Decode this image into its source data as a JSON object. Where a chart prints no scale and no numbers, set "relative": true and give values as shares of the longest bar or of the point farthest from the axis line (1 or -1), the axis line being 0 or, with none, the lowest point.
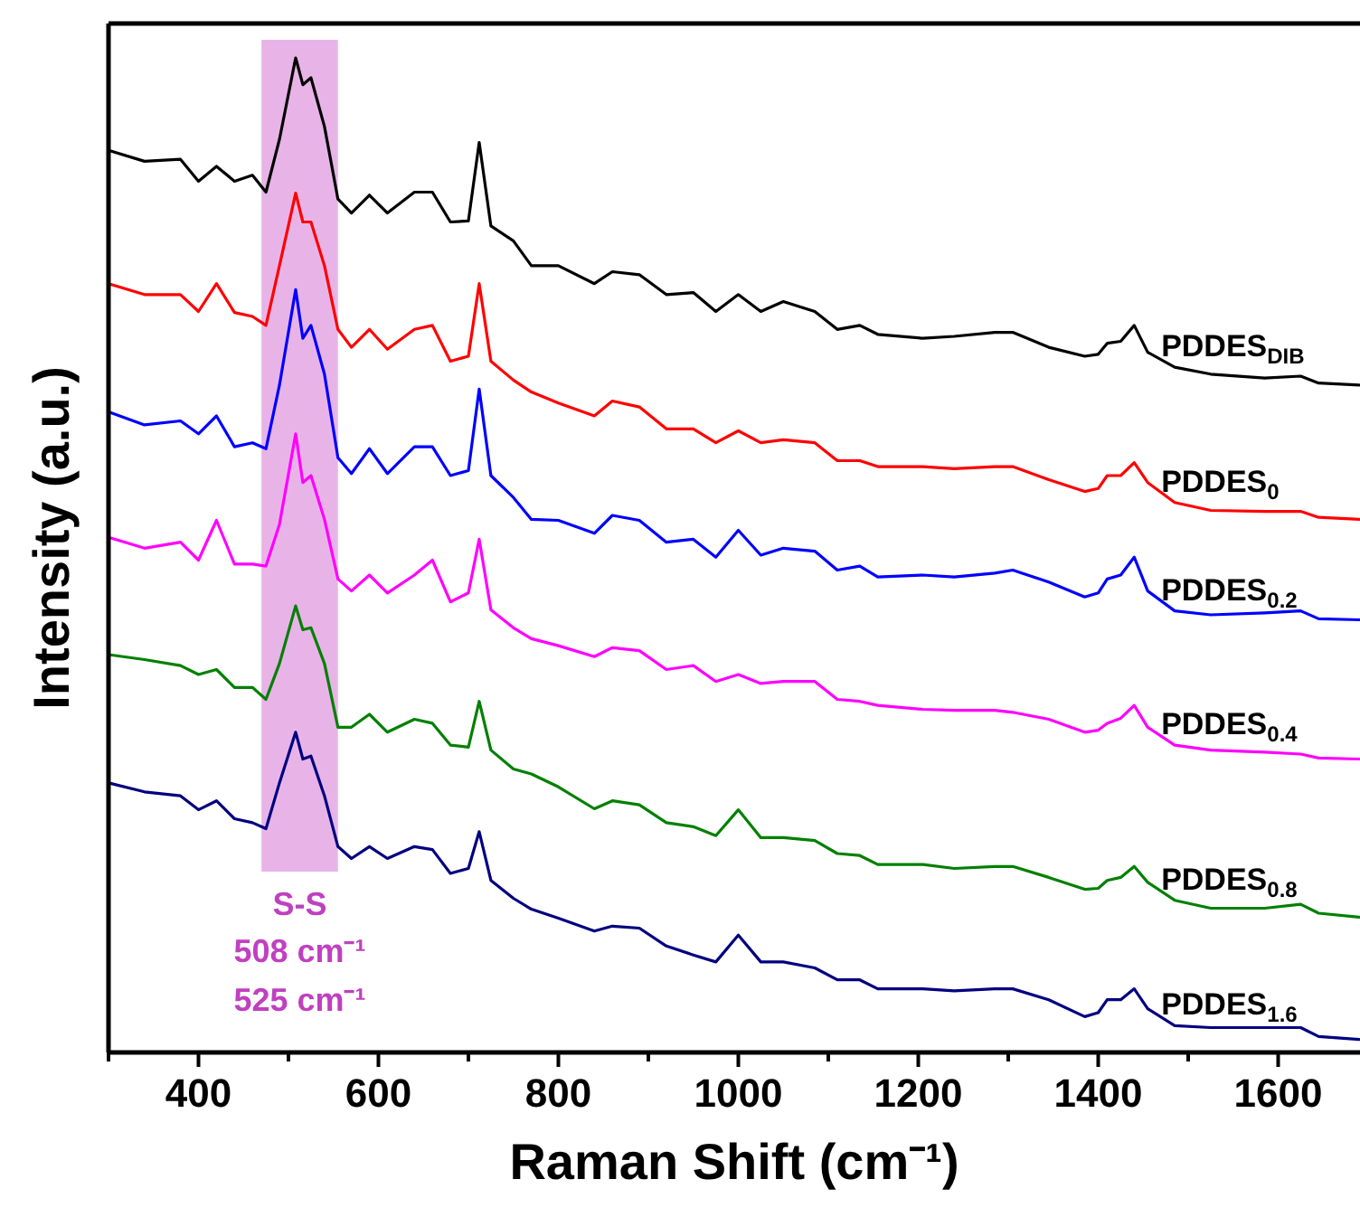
{
  "chart_data": {
    "type": "line",
    "relative": true,
    "xlabel": "Raman Shift (cm⁻¹)",
    "ylabel": "Intensity (a.u.)",
    "xlim": [
      300,
      1700
    ],
    "xticks": [
      {
        "value": 300,
        "label": null
      },
      400,
      {
        "value": 500,
        "label": null
      },
      600,
      {
        "value": 700,
        "label": null
      },
      800,
      {
        "value": 900,
        "label": null
      },
      1000,
      {
        "value": 1100,
        "label": null
      },
      1200,
      {
        "value": 1300,
        "label": null
      },
      1400,
      {
        "value": 1500,
        "label": null
      },
      1600
    ],
    "grid": false,
    "legend": false,
    "marker": "none",
    "line_style": "solid",
    "tick_labels": "x",
    "x": [
      300,
      340,
      380,
      400,
      420,
      440,
      460,
      475,
      490,
      508,
      516,
      525,
      540,
      555,
      570,
      590,
      610,
      640,
      660,
      680,
      700,
      712,
      725,
      750,
      770,
      800,
      840,
      860,
      890,
      920,
      950,
      975,
      1000,
      1025,
      1050,
      1085,
      1110,
      1135,
      1155,
      1205,
      1240,
      1285,
      1305,
      1345,
      1385,
      1400,
      1410,
      1425,
      1440,
      1455,
      1485,
      1525,
      1585,
      1625,
      1645,
      1690
    ],
    "series": [
      {
        "name": "PDDES$_{DIB}$",
        "color": "#000000",
        "values": [
          0.907,
          0.896,
          0.898,
          0.876,
          0.891,
          0.876,
          0.882,
          0.865,
          0.918,
          1.0,
          0.973,
          0.98,
          0.931,
          0.858,
          0.844,
          0.862,
          0.844,
          0.865,
          0.865,
          0.835,
          0.836,
          0.915,
          0.831,
          0.816,
          0.791,
          0.791,
          0.773,
          0.785,
          0.782,
          0.762,
          0.764,
          0.745,
          0.762,
          0.745,
          0.755,
          0.745,
          0.727,
          0.731,
          0.722,
          0.718,
          0.72,
          0.724,
          0.724,
          0.709,
          0.7,
          0.702,
          0.713,
          0.715,
          0.731,
          0.704,
          0.689,
          0.682,
          0.678,
          0.68,
          0.673,
          0.671
        ]
      },
      {
        "name": "PDDES$_{0}$",
        "color": "#ff0000",
        "values": [
          0.773,
          0.762,
          0.762,
          0.745,
          0.773,
          0.744,
          0.74,
          0.731,
          0.791,
          0.864,
          0.835,
          0.835,
          0.791,
          0.727,
          0.709,
          0.727,
          0.707,
          0.727,
          0.731,
          0.695,
          0.7,
          0.773,
          0.695,
          0.676,
          0.664,
          0.653,
          0.64,
          0.655,
          0.649,
          0.627,
          0.627,
          0.613,
          0.625,
          0.613,
          0.616,
          0.613,
          0.595,
          0.595,
          0.589,
          0.589,
          0.587,
          0.589,
          0.589,
          0.576,
          0.564,
          0.567,
          0.58,
          0.58,
          0.593,
          0.573,
          0.553,
          0.545,
          0.544,
          0.544,
          0.538,
          0.536
        ]
      },
      {
        "name": "PDDES$_{0.2}$",
        "color": "#0000ff",
        "values": [
          0.644,
          0.631,
          0.635,
          0.622,
          0.64,
          0.609,
          0.613,
          0.607,
          0.671,
          0.767,
          0.718,
          0.731,
          0.682,
          0.598,
          0.582,
          0.607,
          0.582,
          0.609,
          0.609,
          0.58,
          0.585,
          0.667,
          0.58,
          0.558,
          0.536,
          0.535,
          0.522,
          0.54,
          0.535,
          0.513,
          0.516,
          0.498,
          0.525,
          0.5,
          0.507,
          0.504,
          0.485,
          0.489,
          0.478,
          0.48,
          0.478,
          0.482,
          0.485,
          0.473,
          0.458,
          0.462,
          0.476,
          0.48,
          0.498,
          0.464,
          0.444,
          0.44,
          0.442,
          0.444,
          0.436,
          0.435
        ]
      },
      {
        "name": "PDDES$_{0.4}$",
        "color": "#ff00ff",
        "values": [
          0.518,
          0.507,
          0.513,
          0.495,
          0.535,
          0.491,
          0.491,
          0.489,
          0.531,
          0.622,
          0.573,
          0.58,
          0.536,
          0.476,
          0.464,
          0.48,
          0.462,
          0.48,
          0.495,
          0.453,
          0.462,
          0.516,
          0.445,
          0.427,
          0.416,
          0.409,
          0.398,
          0.407,
          0.404,
          0.385,
          0.389,
          0.373,
          0.38,
          0.371,
          0.373,
          0.373,
          0.355,
          0.353,
          0.349,
          0.345,
          0.344,
          0.344,
          0.342,
          0.335,
          0.322,
          0.324,
          0.331,
          0.336,
          0.349,
          0.327,
          0.309,
          0.304,
          0.302,
          0.3,
          0.296,
          0.295
        ]
      },
      {
        "name": "PDDES$_{0.8}$",
        "color": "#008000",
        "values": [
          0.4,
          0.395,
          0.389,
          0.38,
          0.385,
          0.367,
          0.367,
          0.355,
          0.391,
          0.449,
          0.425,
          0.427,
          0.391,
          0.327,
          0.327,
          0.34,
          0.322,
          0.335,
          0.331,
          0.309,
          0.307,
          0.353,
          0.304,
          0.285,
          0.28,
          0.267,
          0.245,
          0.253,
          0.249,
          0.231,
          0.227,
          0.218,
          0.244,
          0.216,
          0.216,
          0.213,
          0.2,
          0.198,
          0.189,
          0.189,
          0.185,
          0.187,
          0.187,
          0.176,
          0.164,
          0.165,
          0.173,
          0.176,
          0.187,
          0.171,
          0.153,
          0.145,
          0.145,
          0.149,
          0.14,
          0.136
        ]
      },
      {
        "name": "PDDES$_{1.6}$",
        "color": "#000080",
        "values": [
          0.271,
          0.262,
          0.258,
          0.244,
          0.253,
          0.235,
          0.231,
          0.225,
          0.271,
          0.322,
          0.295,
          0.298,
          0.258,
          0.207,
          0.195,
          0.207,
          0.195,
          0.207,
          0.204,
          0.18,
          0.185,
          0.222,
          0.173,
          0.155,
          0.144,
          0.135,
          0.122,
          0.127,
          0.125,
          0.107,
          0.098,
          0.091,
          0.118,
          0.091,
          0.091,
          0.085,
          0.073,
          0.073,
          0.064,
          0.064,
          0.062,
          0.064,
          0.064,
          0.053,
          0.036,
          0.04,
          0.053,
          0.053,
          0.064,
          0.044,
          0.027,
          0.025,
          0.025,
          0.025,
          0.016,
          0.013
        ]
      }
    ],
    "bands": [
      {
        "axis": "x",
        "from": 470,
        "to": 555,
        "label": "S-S",
        "color": "#e8b4e8"
      }
    ],
    "annotations": [
      "508 cm⁻¹",
      "525 cm⁻¹"
    ]
  }
}
